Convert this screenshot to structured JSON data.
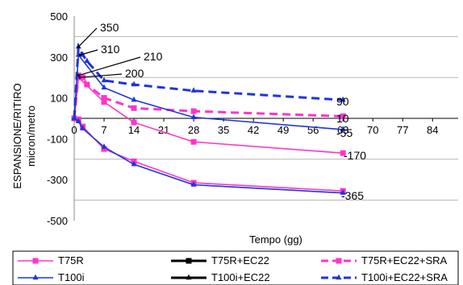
{
  "chart_data": {
    "type": "line",
    "title": "",
    "xlabel": "Tempo (gg)",
    "ylabel_line1": "ESPANSIONE/RITIRO",
    "ylabel_line2": "micron/metro",
    "xlim": [
      0,
      90
    ],
    "ylim": [
      -500,
      500
    ],
    "x_ticks": [
      "0",
      "7",
      "14",
      "21",
      "28",
      "35",
      "42",
      "49",
      "56",
      "63",
      "70",
      "77",
      "84"
    ],
    "y_ticks": [
      "500",
      "300",
      "100",
      "-100",
      "-300",
      "-500"
    ],
    "grid": "horizontal",
    "legend_position": "bottom",
    "colors": {
      "magenta": "#ff33cc",
      "blue": "#1f35d6"
    },
    "series": [
      {
        "name": "T75R",
        "color": "#ff33cc",
        "marker": "square",
        "dash": "solid",
        "x": [
          0,
          1,
          2,
          7,
          14,
          28,
          63
        ],
        "y": [
          0,
          -5,
          -40,
          -150,
          -210,
          -315,
          -355
        ]
      },
      {
        "name": "T75R+EC22",
        "color": "#ff33cc",
        "marker": "square",
        "dash": "solid",
        "x": [
          0,
          1,
          7,
          14,
          28,
          63
        ],
        "y": [
          0,
          200,
          80,
          -20,
          -115,
          -170
        ]
      },
      {
        "name": "T75R+EC22+SRA",
        "color": "#ff33cc",
        "marker": "square",
        "dash": "dashed",
        "x": [
          0,
          1,
          2,
          3,
          7,
          14,
          28,
          63
        ],
        "y": [
          0,
          210,
          200,
          165,
          100,
          50,
          35,
          10
        ]
      },
      {
        "name": "T100i",
        "color": "#1f35d6",
        "marker": "triangle",
        "dash": "solid",
        "x": [
          0,
          1,
          2,
          7,
          14,
          28,
          63
        ],
        "y": [
          0,
          -15,
          -50,
          -140,
          -225,
          -325,
          -365
        ]
      },
      {
        "name": "T100i+EC22",
        "color": "#1f35d6",
        "marker": "triangle",
        "dash": "solid",
        "x": [
          0,
          1,
          7,
          14,
          28,
          63
        ],
        "y": [
          0,
          310,
          150,
          90,
          5,
          -55
        ]
      },
      {
        "name": "T100i+EC22+SRA",
        "color": "#1f35d6",
        "marker": "triangle",
        "dash": "dashed",
        "x": [
          0,
          1,
          2,
          3,
          7,
          14,
          28,
          63
        ],
        "y": [
          0,
          350,
          310,
          280,
          185,
          165,
          135,
          90
        ]
      }
    ],
    "annotations": [
      "350",
      "310",
      "210",
      "200",
      "90",
      "10",
      "-55",
      "-170",
      "-365"
    ]
  }
}
